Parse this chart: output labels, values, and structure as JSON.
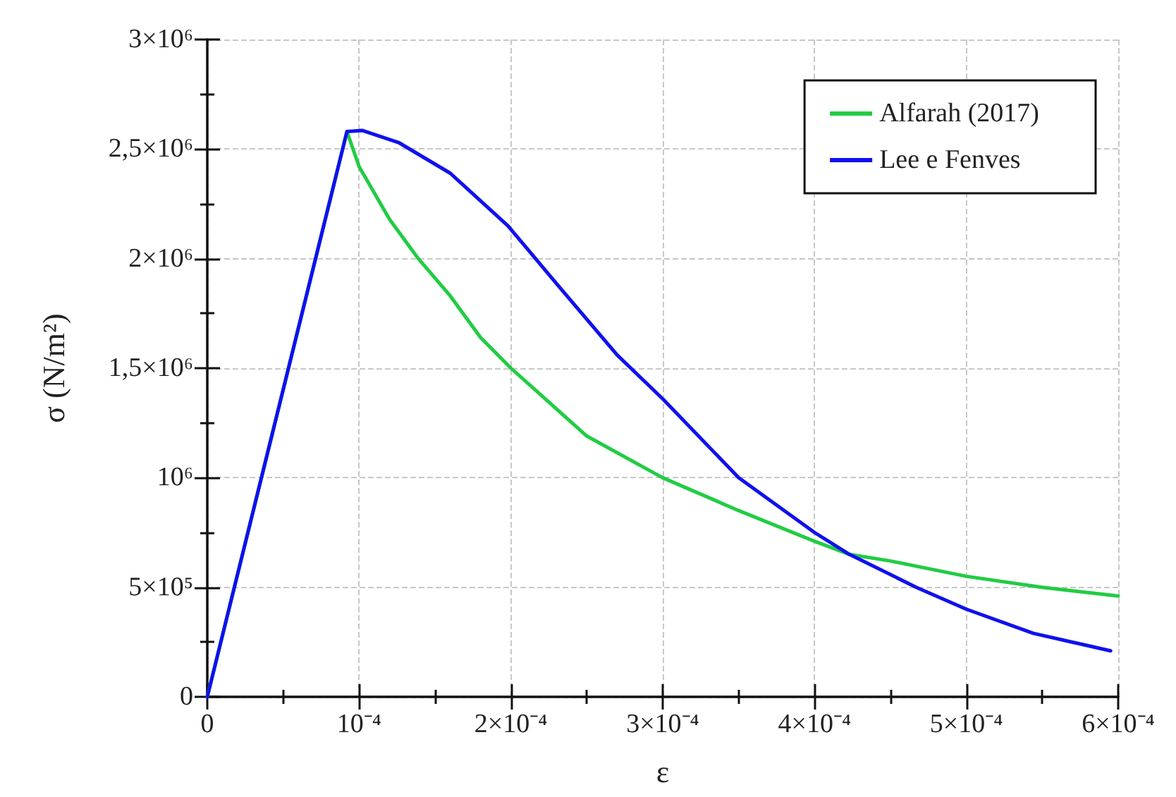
{
  "chart_data": {
    "type": "line",
    "xlabel": "ε",
    "ylabel": "σ (N/m²)",
    "xlim": [
      0,
      0.0006
    ],
    "ylim": [
      0,
      3000000
    ],
    "xticks": [
      {
        "value": 0,
        "label": "0"
      },
      {
        "value": 5e-05,
        "label": null
      },
      {
        "value": 0.0001,
        "label": "10⁻⁴"
      },
      {
        "value": 0.00015,
        "label": null
      },
      {
        "value": 0.0002,
        "label": "2×10⁻⁴"
      },
      {
        "value": 0.00025,
        "label": null
      },
      {
        "value": 0.0003,
        "label": "3×10⁻⁴"
      },
      {
        "value": 0.00035,
        "label": null
      },
      {
        "value": 0.0004,
        "label": "4×10⁻⁴"
      },
      {
        "value": 0.00045,
        "label": null
      },
      {
        "value": 0.0005,
        "label": "5×10⁻⁴"
      },
      {
        "value": 0.00055,
        "label": null
      },
      {
        "value": 0.0006,
        "label": "6×10⁻⁴"
      }
    ],
    "yticks": [
      {
        "value": 0,
        "label": "0"
      },
      {
        "value": 250000,
        "label": null
      },
      {
        "value": 500000,
        "label": "5×10⁵"
      },
      {
        "value": 750000,
        "label": null
      },
      {
        "value": 1000000,
        "label": "10⁶"
      },
      {
        "value": 1250000,
        "label": null
      },
      {
        "value": 1500000,
        "label": "1,5×10⁶"
      },
      {
        "value": 1750000,
        "label": null
      },
      {
        "value": 2000000,
        "label": "2×10⁶"
      },
      {
        "value": 2250000,
        "label": null
      },
      {
        "value": 2500000,
        "label": "2,5×10⁶"
      },
      {
        "value": 2750000,
        "label": null
      },
      {
        "value": 3000000,
        "label": "3×10⁶"
      }
    ],
    "grid": true,
    "legend": "top right",
    "marker": "none",
    "line_style": "solid",
    "series": [
      {
        "name": "Alfarah (2017)",
        "color": "#22cc44",
        "x": [
          0,
          9.2e-05,
          0.0001,
          0.00012,
          0.000139,
          0.00016,
          0.00018,
          0.0002,
          0.00025,
          0.0003,
          0.00035,
          0.0004,
          0.000423,
          0.00045,
          0.0005,
          0.00055,
          0.0006
        ],
        "values": [
          0,
          2580000,
          2420000,
          2180000,
          2000000,
          1830000,
          1640000,
          1500000,
          1190000,
          1000000,
          850000,
          710000,
          650000,
          620000,
          550000,
          500000,
          460000
        ]
      },
      {
        "name": "Lee e Fenves",
        "color": "#1010ee",
        "x": [
          0,
          9.2e-05,
          0.000102,
          0.000126,
          0.00016,
          0.000198,
          0.000232,
          0.00027,
          0.0003,
          0.00035,
          0.0004,
          0.000423,
          0.000467,
          0.0005,
          0.000544,
          0.000595
        ],
        "values": [
          0,
          2580000,
          2585000,
          2530000,
          2390000,
          2150000,
          1870000,
          1560000,
          1360000,
          1000000,
          750000,
          650000,
          500000,
          400000,
          290000,
          210000
        ]
      }
    ]
  }
}
